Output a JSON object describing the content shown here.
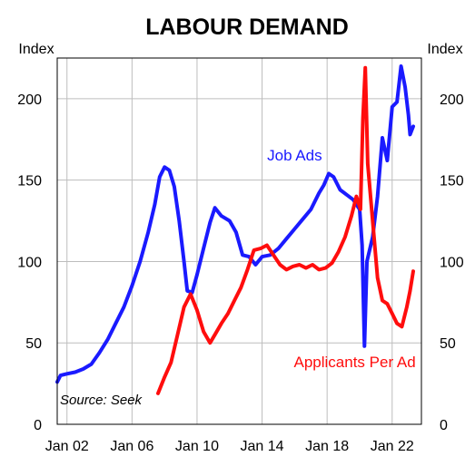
{
  "chart_data": {
    "type": "line",
    "title": "LABOUR DEMAND",
    "ylabel_left": "Index",
    "ylabel_right": "Index",
    "source": "Source: Seek",
    "ylim": [
      0,
      225
    ],
    "xlim": [
      2001.4,
      2023.8
    ],
    "y_ticks": [
      0,
      50,
      100,
      150,
      200
    ],
    "x_ticks": [
      {
        "label": "Jan 02",
        "x": 2002
      },
      {
        "label": "Jan 06",
        "x": 2006
      },
      {
        "label": "Jan 10",
        "x": 2010
      },
      {
        "label": "Jan 14",
        "x": 2014
      },
      {
        "label": "Jan 18",
        "x": 2018
      },
      {
        "label": "Jan 22",
        "x": 2022
      }
    ],
    "grid": true,
    "series": [
      {
        "name": "Job Ads",
        "color": "#1a1aff",
        "points": [
          [
            2001.4,
            26
          ],
          [
            2001.6,
            30
          ],
          [
            2002.0,
            31
          ],
          [
            2002.5,
            32
          ],
          [
            2003.0,
            34
          ],
          [
            2003.5,
            37
          ],
          [
            2004.0,
            44
          ],
          [
            2004.5,
            52
          ],
          [
            2005.0,
            62
          ],
          [
            2005.5,
            72
          ],
          [
            2006.0,
            85
          ],
          [
            2006.5,
            100
          ],
          [
            2007.0,
            118
          ],
          [
            2007.4,
            135
          ],
          [
            2007.7,
            152
          ],
          [
            2008.0,
            158
          ],
          [
            2008.3,
            156
          ],
          [
            2008.6,
            146
          ],
          [
            2008.9,
            125
          ],
          [
            2009.2,
            100
          ],
          [
            2009.4,
            82
          ],
          [
            2009.7,
            81
          ],
          [
            2010.0,
            92
          ],
          [
            2010.4,
            108
          ],
          [
            2010.8,
            124
          ],
          [
            2011.1,
            133
          ],
          [
            2011.5,
            128
          ],
          [
            2012.0,
            125
          ],
          [
            2012.4,
            118
          ],
          [
            2012.8,
            104
          ],
          [
            2013.2,
            103
          ],
          [
            2013.6,
            98
          ],
          [
            2014.0,
            103
          ],
          [
            2014.5,
            104
          ],
          [
            2015.0,
            108
          ],
          [
            2015.5,
            114
          ],
          [
            2016.0,
            120
          ],
          [
            2016.5,
            126
          ],
          [
            2017.0,
            132
          ],
          [
            2017.5,
            142
          ],
          [
            2017.8,
            147
          ],
          [
            2018.1,
            154
          ],
          [
            2018.4,
            152
          ],
          [
            2018.8,
            144
          ],
          [
            2019.2,
            141
          ],
          [
            2019.6,
            138
          ],
          [
            2020.0,
            132
          ],
          [
            2020.15,
            110
          ],
          [
            2020.3,
            48
          ],
          [
            2020.45,
            100
          ],
          [
            2020.8,
            115
          ],
          [
            2021.1,
            140
          ],
          [
            2021.4,
            176
          ],
          [
            2021.7,
            162
          ],
          [
            2022.0,
            195
          ],
          [
            2022.3,
            198
          ],
          [
            2022.55,
            220
          ],
          [
            2022.8,
            207
          ],
          [
            2023.0,
            190
          ],
          [
            2023.1,
            178
          ],
          [
            2023.3,
            183
          ]
        ]
      },
      {
        "name": "Applicants Per Ad",
        "color": "#ff0d0d",
        "points": [
          [
            2007.6,
            19
          ],
          [
            2008.0,
            29
          ],
          [
            2008.4,
            38
          ],
          [
            2008.8,
            55
          ],
          [
            2009.2,
            72
          ],
          [
            2009.6,
            80
          ],
          [
            2010.0,
            70
          ],
          [
            2010.4,
            57
          ],
          [
            2010.8,
            50
          ],
          [
            2011.1,
            55
          ],
          [
            2011.5,
            62
          ],
          [
            2011.9,
            68
          ],
          [
            2012.3,
            76
          ],
          [
            2012.7,
            84
          ],
          [
            2013.1,
            95
          ],
          [
            2013.5,
            107
          ],
          [
            2013.9,
            108
          ],
          [
            2014.3,
            110
          ],
          [
            2014.7,
            104
          ],
          [
            2015.1,
            98
          ],
          [
            2015.5,
            95
          ],
          [
            2015.9,
            97
          ],
          [
            2016.3,
            98
          ],
          [
            2016.7,
            96
          ],
          [
            2017.1,
            98
          ],
          [
            2017.5,
            95
          ],
          [
            2017.9,
            96
          ],
          [
            2018.3,
            99
          ],
          [
            2018.7,
            106
          ],
          [
            2019.1,
            115
          ],
          [
            2019.5,
            128
          ],
          [
            2019.8,
            140
          ],
          [
            2020.05,
            132
          ],
          [
            2020.2,
            188
          ],
          [
            2020.35,
            219
          ],
          [
            2020.5,
            160
          ],
          [
            2020.8,
            125
          ],
          [
            2021.1,
            90
          ],
          [
            2021.4,
            76
          ],
          [
            2021.7,
            74
          ],
          [
            2022.0,
            68
          ],
          [
            2022.3,
            62
          ],
          [
            2022.6,
            60
          ],
          [
            2022.9,
            72
          ],
          [
            2023.1,
            82
          ],
          [
            2023.3,
            94
          ]
        ]
      }
    ],
    "annotations": [
      {
        "text": "Job Ads",
        "series": "Job Ads",
        "x": 2016.0,
        "y": 162
      },
      {
        "text": "Applicants Per Ad",
        "series": "Applicants Per Ad",
        "x": 2019.7,
        "y": 35
      }
    ]
  }
}
